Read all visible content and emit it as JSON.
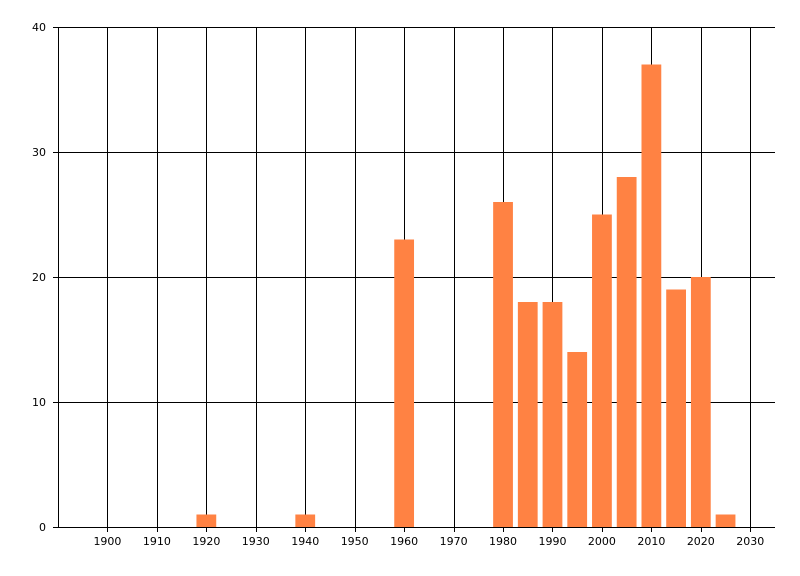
{
  "chart_data": {
    "type": "bar",
    "x": [
      1920,
      1940,
      1960,
      1980,
      1985,
      1990,
      1995,
      2000,
      2005,
      2010,
      2015,
      2020,
      2025
    ],
    "values": [
      1,
      1,
      23,
      26,
      18,
      18,
      14,
      25,
      28,
      37,
      19,
      20,
      1
    ],
    "bar_width": 4,
    "xlim": [
      1890,
      2035
    ],
    "ylim": [
      0,
      40
    ],
    "x_ticks": [
      1900,
      1910,
      1920,
      1930,
      1940,
      1950,
      1960,
      1970,
      1980,
      1990,
      2000,
      2010,
      2020,
      2030
    ],
    "y_ticks": [
      0,
      10,
      20,
      30,
      40
    ],
    "grid": true,
    "bar_color": "#FF8243",
    "title": "",
    "xlabel": "",
    "ylabel": "",
    "legend": "none"
  }
}
